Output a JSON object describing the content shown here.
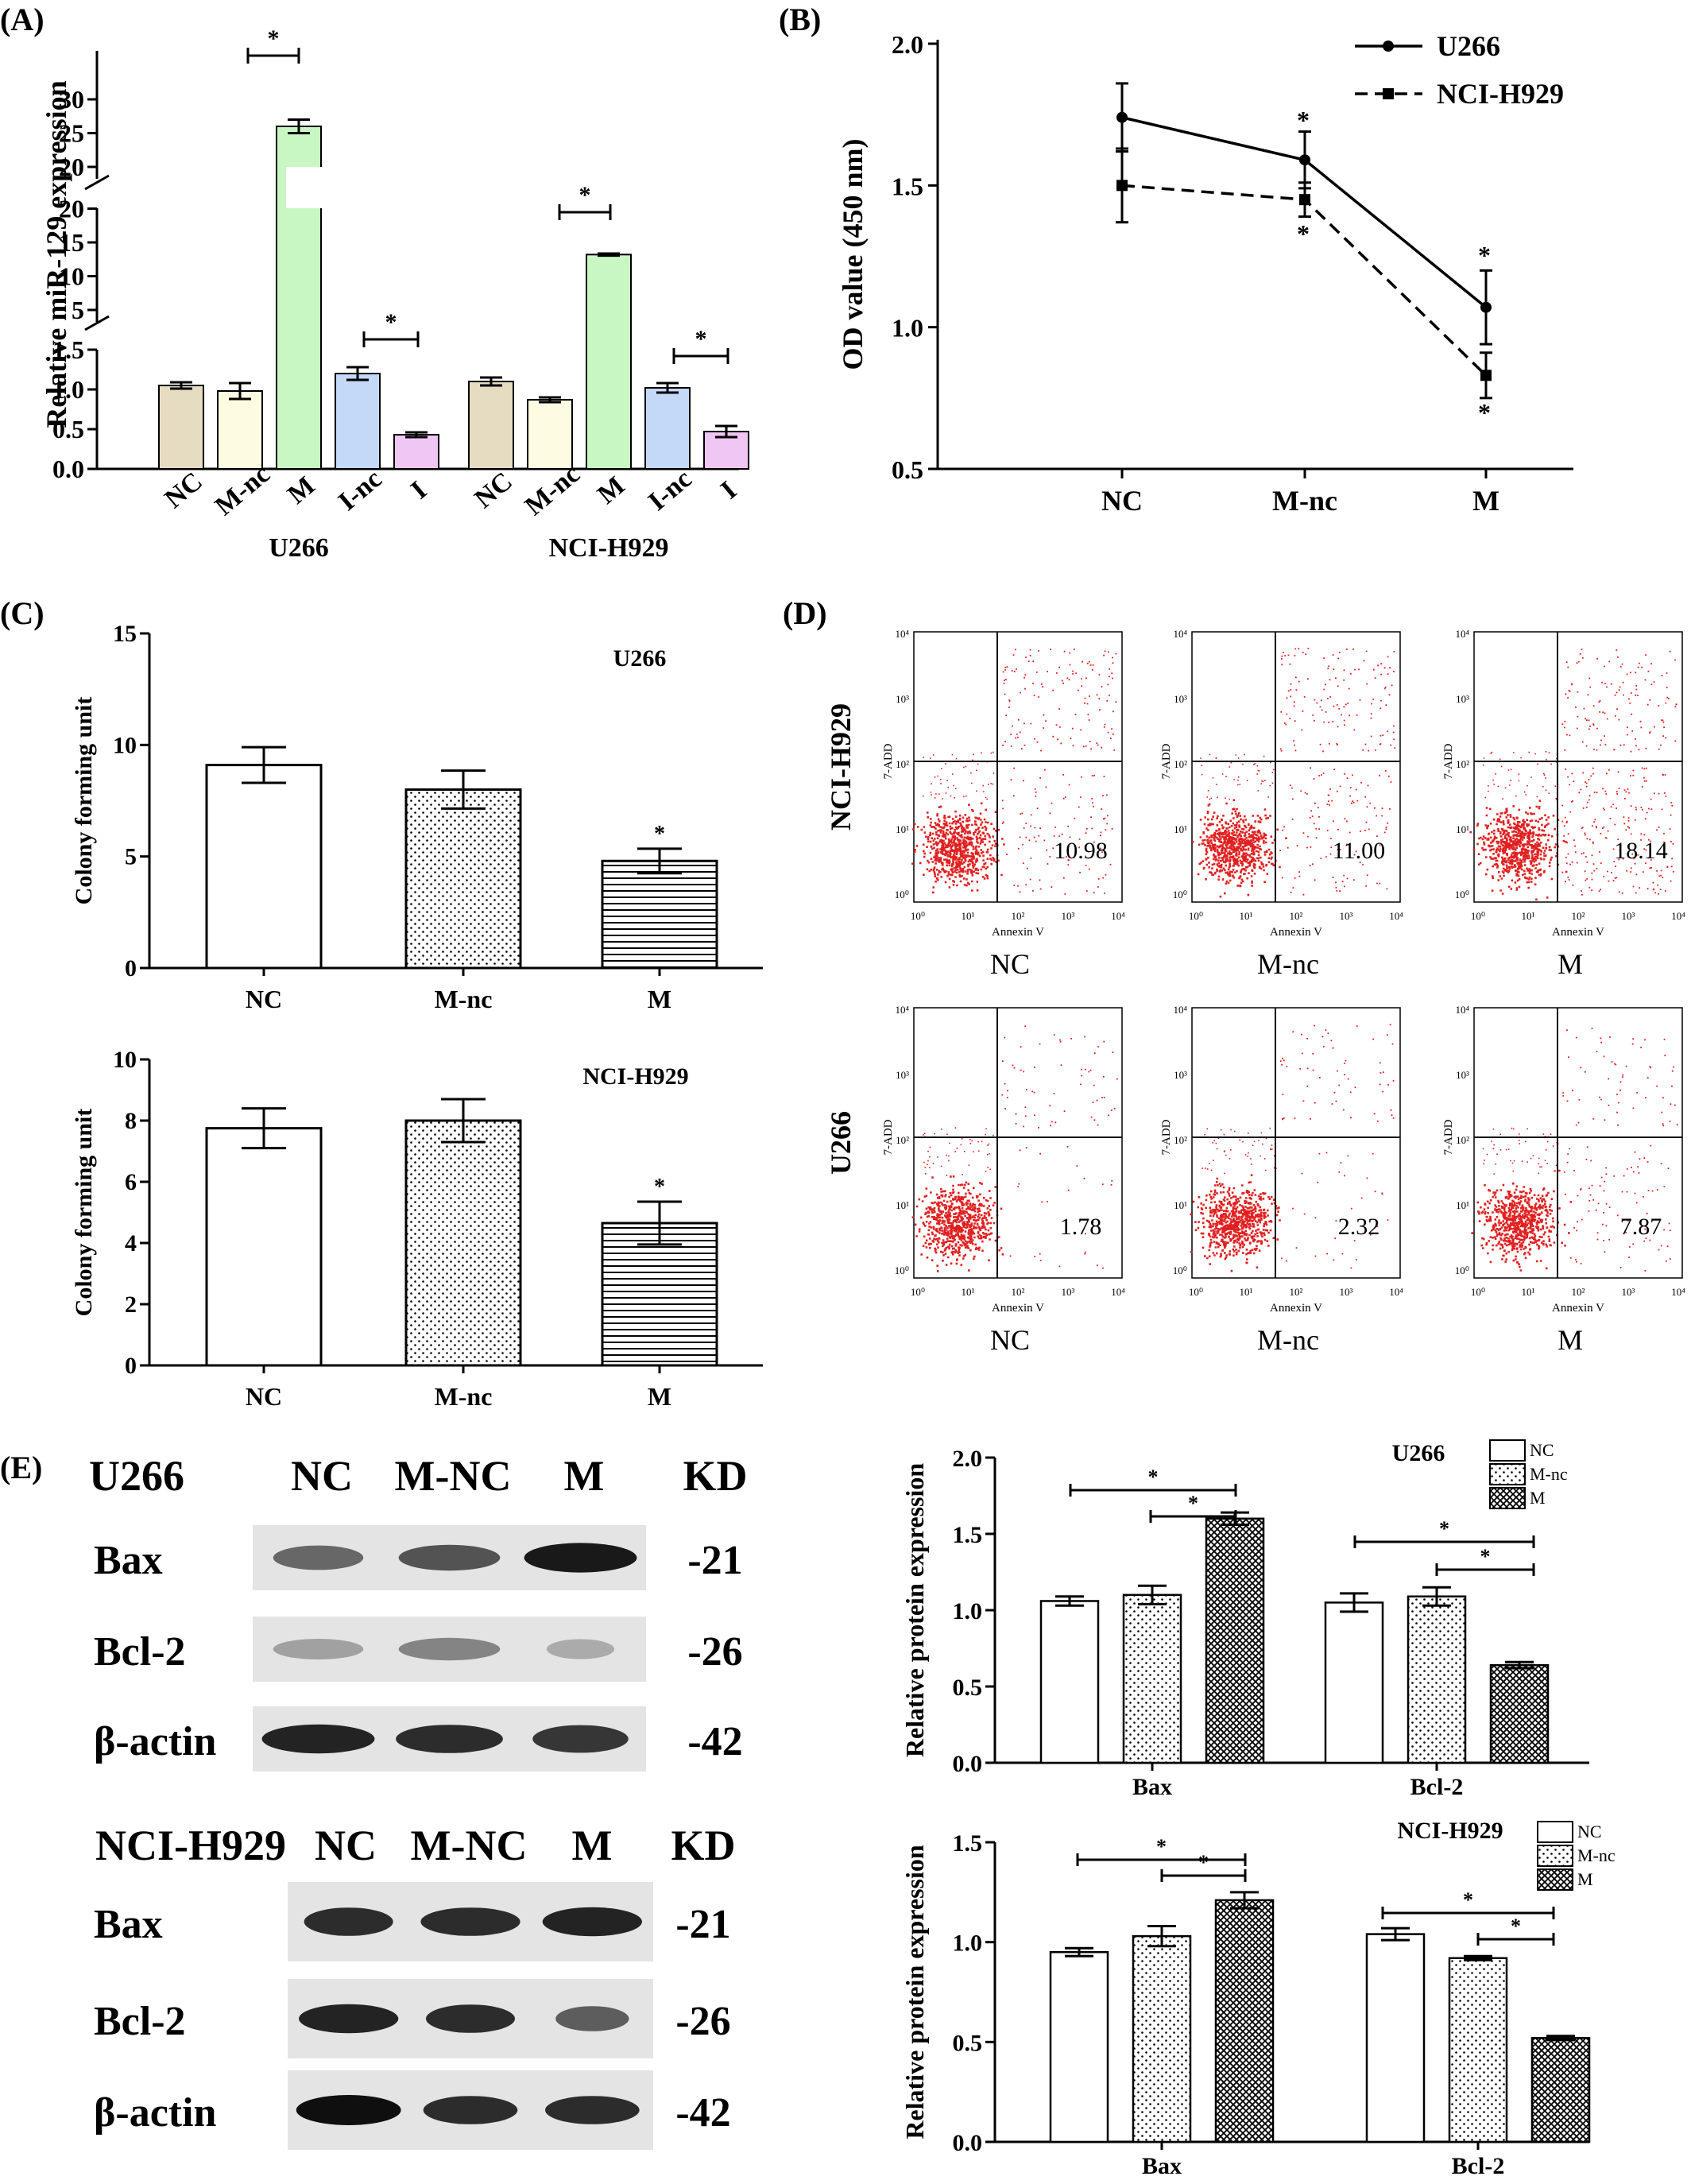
{
  "panel_labels": {
    "a": "(A)",
    "b": "(B)",
    "c": "(C)",
    "d": "(D)",
    "e": "(E)"
  },
  "palette": {
    "NC": "#e6dcc2",
    "M-nc": "#fdfbe2",
    "M": "#c9f7c4",
    "I-nc": "#c3d9f7",
    "I": "#f0c6f4",
    "ink": "#000000",
    "dots": "#e02020"
  },
  "panel_a": {
    "ylabel": "Relative miR-129 expression",
    "ticks_low": [
      "0.0",
      "0.5",
      "1.0",
      "1.5"
    ],
    "ticks_mid": [
      "5",
      "10",
      "15",
      "20"
    ],
    "ticks_high": [
      "20",
      "25",
      "30"
    ],
    "groups": [
      {
        "name": "U266",
        "categories": [
          "NC",
          "M-nc",
          "M",
          "I-nc",
          "I"
        ],
        "values": [
          1.05,
          0.98,
          26.0,
          1.2,
          0.43
        ],
        "errors": [
          0.04,
          0.1,
          1.0,
          0.08,
          0.03
        ]
      },
      {
        "name": "NCI-H929",
        "categories": [
          "NC",
          "M-nc",
          "M",
          "I-nc",
          "I"
        ],
        "values": [
          1.1,
          0.87,
          13.2,
          1.02,
          0.47
        ],
        "errors": [
          0.05,
          0.03,
          0.15,
          0.06,
          0.07
        ]
      }
    ],
    "sig": "*"
  },
  "panel_b": {
    "ylabel": "OD value (450 nm)",
    "categories": [
      "NC",
      "M-nc",
      "M"
    ],
    "yticks": [
      "0.5",
      "1.0",
      "1.5",
      "2.0"
    ],
    "series": [
      {
        "name": "U266",
        "values": [
          1.74,
          1.59,
          1.07
        ],
        "errors": [
          0.12,
          0.1,
          0.13
        ]
      },
      {
        "name": "NCI-H929",
        "values": [
          1.5,
          1.45,
          0.83
        ],
        "errors": [
          0.13,
          0.06,
          0.08
        ]
      }
    ],
    "sig": "*"
  },
  "panel_c": {
    "ylabel": "Colony forming unit",
    "charts": [
      {
        "title": "U266",
        "categories": [
          "NC",
          "M-nc",
          "M"
        ],
        "values": [
          9.1,
          8.0,
          4.8
        ],
        "errors": [
          0.8,
          0.85,
          0.55
        ],
        "yticks": [
          "0",
          "5",
          "10",
          "15"
        ]
      },
      {
        "title": "NCI-H929",
        "categories": [
          "NC",
          "M-nc",
          "M"
        ],
        "values": [
          7.75,
          8.0,
          4.65
        ],
        "errors": [
          0.65,
          0.7,
          0.7
        ],
        "yticks": [
          "0",
          "2",
          "4",
          "6",
          "8",
          "10"
        ]
      }
    ],
    "sig": "*"
  },
  "panel_d": {
    "xaxis": "Annexin V",
    "yaxis": "7-ADD",
    "ticks": [
      "10⁰",
      "10¹",
      "10²",
      "10³",
      "10⁴"
    ],
    "rows": [
      {
        "cell_line": "NCI-H929",
        "values": [
          "10.98",
          "11.00",
          "18.14"
        ]
      },
      {
        "cell_line": "U266",
        "values": [
          "1.78",
          "2.32",
          "7.87"
        ]
      }
    ],
    "conditions": [
      "NC",
      "M-nc",
      "M"
    ]
  },
  "panel_e_blots": [
    {
      "cell_line": "U266",
      "lanes": [
        "NC",
        "M-NC",
        "M"
      ],
      "kd": "KD",
      "proteins": [
        {
          "name": "Bax",
          "kd": "-21"
        },
        {
          "name": "Bcl-2",
          "kd": "-26"
        },
        {
          "name": "β-actin",
          "kd": "-42"
        }
      ]
    },
    {
      "cell_line": "NCI-H929",
      "lanes": [
        "NC",
        "M-NC",
        "M"
      ],
      "kd": "KD",
      "proteins": [
        {
          "name": "Bax",
          "kd": "-21"
        },
        {
          "name": "Bcl-2",
          "kd": "-26"
        },
        {
          "name": "β-actin",
          "kd": "-42"
        }
      ]
    }
  ],
  "chart_data": [
    {
      "type": "bar",
      "ylabel": "Relative protein expression",
      "title": "U266",
      "categories": [
        "Bax",
        "Bcl-2"
      ],
      "series": [
        {
          "name": "NC",
          "values": [
            1.06,
            1.05
          ],
          "errors": [
            0.03,
            0.06
          ]
        },
        {
          "name": "M-nc",
          "values": [
            1.1,
            1.09
          ],
          "errors": [
            0.06,
            0.06
          ]
        },
        {
          "name": "M",
          "values": [
            1.6,
            0.64
          ],
          "errors": [
            0.04,
            0.02
          ]
        }
      ],
      "yticks": [
        "0.0",
        "0.5",
        "1.0",
        "1.5",
        "2.0"
      ],
      "ylim": [
        0,
        2
      ],
      "legend": "top-right",
      "sig": "*"
    },
    {
      "type": "bar",
      "ylabel": "Relative protein expression",
      "title": "NCI-H929",
      "categories": [
        "Bax",
        "Bcl-2"
      ],
      "series": [
        {
          "name": "NC",
          "values": [
            0.95,
            1.04
          ],
          "errors": [
            0.02,
            0.03
          ]
        },
        {
          "name": "M-nc",
          "values": [
            1.03,
            0.92
          ],
          "errors": [
            0.05,
            0.01
          ]
        },
        {
          "name": "M",
          "values": [
            1.21,
            0.52
          ],
          "errors": [
            0.04,
            0.01
          ]
        }
      ],
      "yticks": [
        "0.0",
        "0.5",
        "1.0",
        "1.5"
      ],
      "ylim": [
        0,
        1.5
      ],
      "legend": "top-right",
      "sig": "*"
    }
  ]
}
